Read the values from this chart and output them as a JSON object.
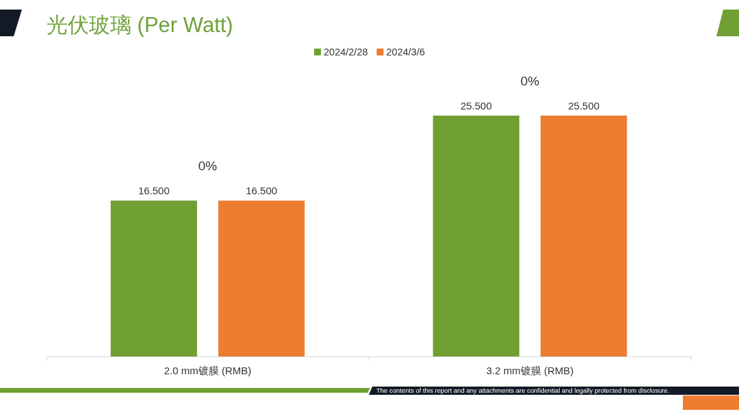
{
  "chart_data": {
    "type": "bar",
    "title": "光伏玻璃 (Per Watt)",
    "categories": [
      "2.0 mm镀膜 (RMB)",
      "3.2 mm镀膜 (RMB)"
    ],
    "series": [
      {
        "name": "2024/2/28",
        "color": "#70a033",
        "values": [
          16.5,
          25.5
        ],
        "value_labels": [
          "16.500",
          "25.500"
        ]
      },
      {
        "name": "2024/3/6",
        "color": "#ed7d31",
        "values": [
          16.5,
          25.5
        ],
        "value_labels": [
          "16.500",
          "25.500"
        ]
      }
    ],
    "legend": "top",
    "annotations": [
      "0%",
      "0%",
      "The contents of this report and any attachments are confidential and legally protected from disclosure."
    ]
  }
}
